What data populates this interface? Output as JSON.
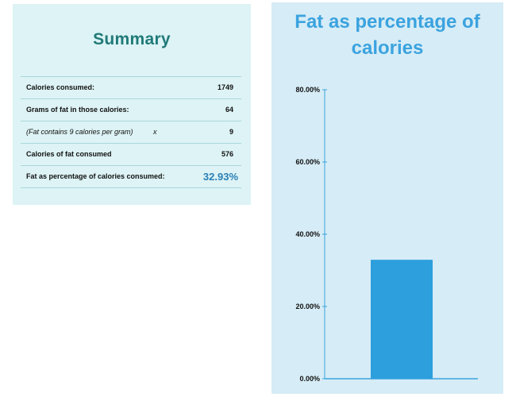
{
  "summary": {
    "title": "Summary",
    "rows": [
      {
        "label": "Calories consumed:",
        "op": "",
        "value": "1749",
        "style": "bold"
      },
      {
        "label": "Grams of fat in those calories:",
        "op": "",
        "value": "64",
        "style": "bold"
      },
      {
        "label": "(Fat contains 9 calories per gram)",
        "op": "x",
        "value": "9",
        "style": "italic"
      },
      {
        "label": "Calories of fat consumed",
        "op": "",
        "value": "576",
        "style": "bold"
      },
      {
        "label": "Fat as percentage of calories consumed:",
        "op": "",
        "value": "32.93%",
        "style": "highlight"
      }
    ]
  },
  "colors": {
    "summary_title": "#1f7a78",
    "chart_title": "#3ba3df",
    "bar": "#2d9fdd",
    "axis": "#3ba3df",
    "highlight_value": "#2a7fb5"
  },
  "chart_data": {
    "type": "bar",
    "title": "Fat as percentage of calories",
    "categories": [
      ""
    ],
    "values": [
      32.93
    ],
    "ylim": [
      0,
      80
    ],
    "yticks": [
      0,
      20,
      40,
      60,
      80
    ],
    "ytick_labels": [
      "0.00%",
      "20.00%",
      "40.00%",
      "60.00%",
      "80.00%"
    ],
    "grid": false,
    "legend": "none"
  }
}
